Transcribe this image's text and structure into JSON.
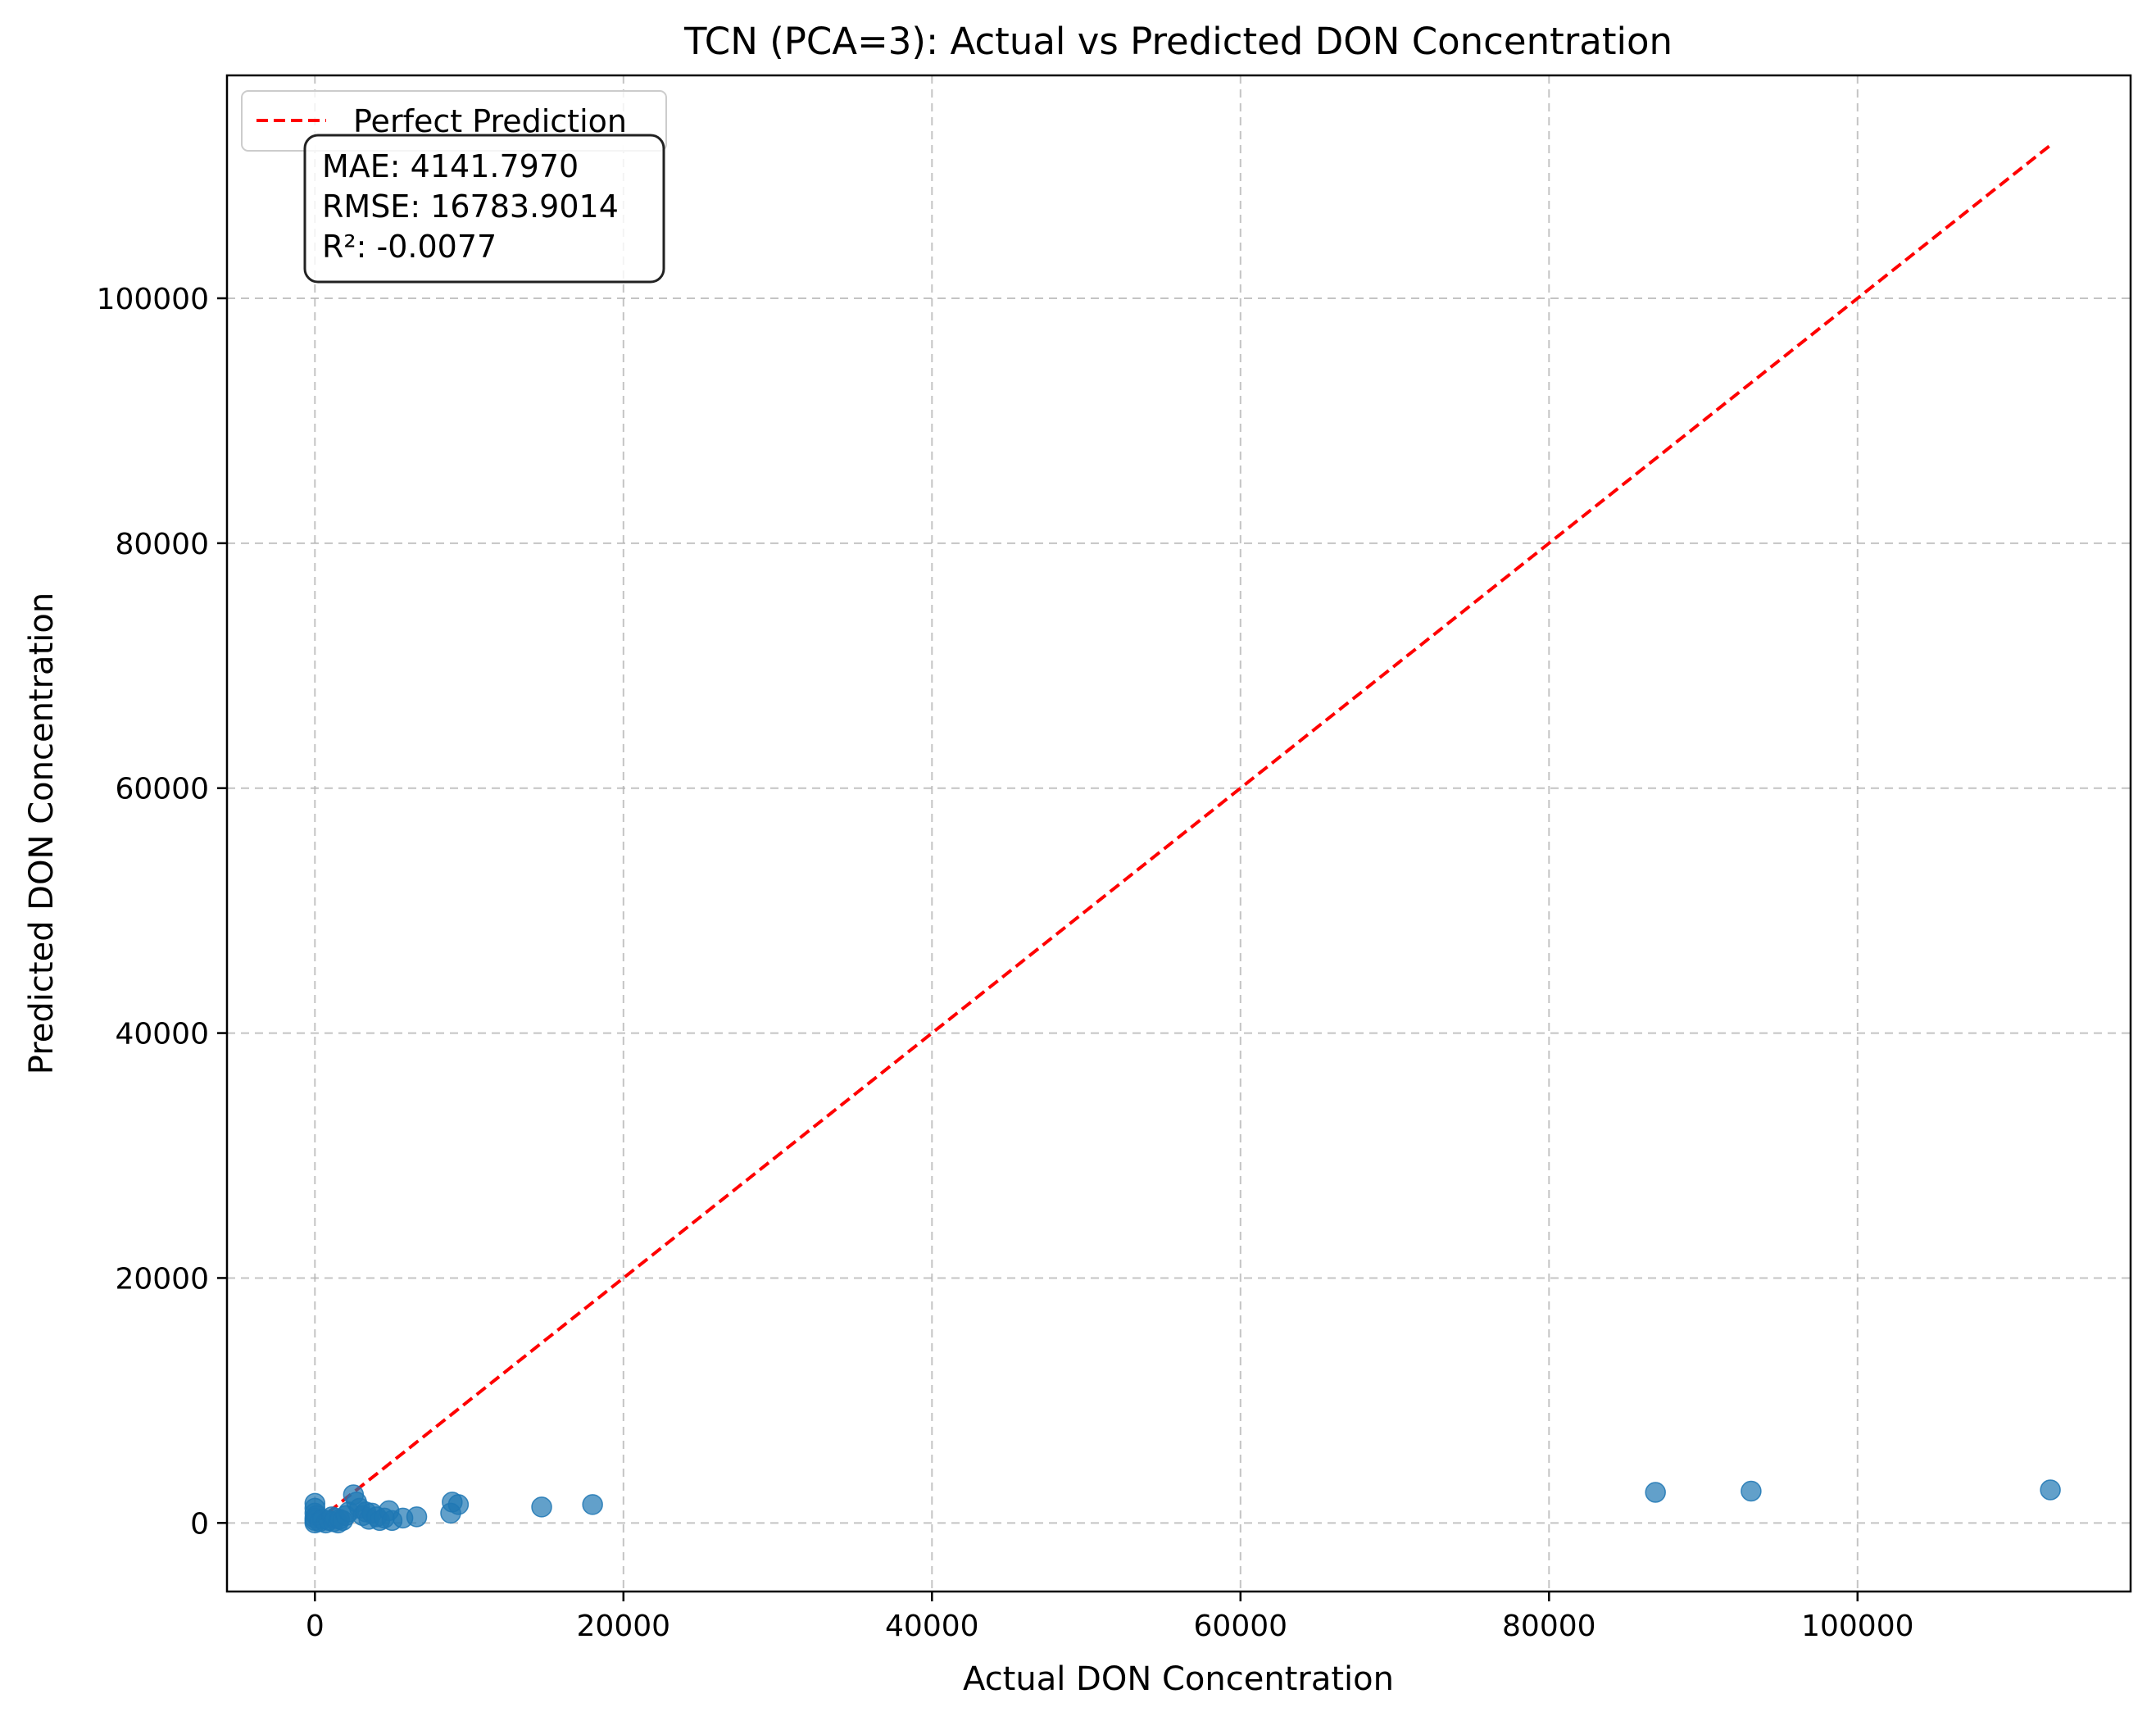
{
  "chart_data": {
    "type": "scatter",
    "title": "TCN (PCA=3): Actual vs Predicted DON Concentration",
    "xlabel": "Actual DON Concentration",
    "ylabel": "Predicted DON Concentration",
    "xlim": [
      -5700,
      117700
    ],
    "ylim": [
      -5600,
      118200
    ],
    "xticks": [
      0,
      20000,
      40000,
      60000,
      80000,
      100000
    ],
    "yticks": [
      0,
      20000,
      40000,
      60000,
      80000,
      100000
    ],
    "xtick_labels": [
      "0",
      "20000",
      "40000",
      "60000",
      "80000",
      "100000"
    ],
    "ytick_labels": [
      "0",
      "20000",
      "40000",
      "60000",
      "80000",
      "100000"
    ],
    "grid": true,
    "legend_position": "top-left",
    "legend": [
      {
        "label": "Perfect Prediction",
        "style": "dashed",
        "color": "#ff0000"
      }
    ],
    "stats_box": {
      "lines": [
        "MAE: 4141.7970",
        "RMSE: 16783.9014",
        "R²: -0.0077"
      ]
    },
    "reference_line": {
      "x": [
        0,
        112500
      ],
      "y": [
        0,
        112500
      ],
      "color": "#ff0000"
    },
    "point_color": "#1f77b4",
    "series": [
      {
        "points": [
          [
            0,
            1600
          ],
          [
            0,
            1200
          ],
          [
            0,
            800
          ],
          [
            0,
            400
          ],
          [
            0,
            0
          ],
          [
            0,
            200
          ],
          [
            100,
            600
          ],
          [
            300,
            100
          ],
          [
            500,
            300
          ],
          [
            700,
            0
          ],
          [
            900,
            200
          ],
          [
            1100,
            500
          ],
          [
            1200,
            100
          ],
          [
            1300,
            400
          ],
          [
            1500,
            0
          ],
          [
            1600,
            300
          ],
          [
            1800,
            200
          ],
          [
            2000,
            600
          ],
          [
            2200,
            900
          ],
          [
            2500,
            2300
          ],
          [
            2700,
            1700
          ],
          [
            2900,
            1200
          ],
          [
            3100,
            600
          ],
          [
            3300,
            900
          ],
          [
            3500,
            300
          ],
          [
            3700,
            800
          ],
          [
            4000,
            500
          ],
          [
            4200,
            200
          ],
          [
            4500,
            400
          ],
          [
            4800,
            1000
          ],
          [
            5000,
            200
          ],
          [
            5700,
            400
          ],
          [
            6600,
            500
          ],
          [
            8800,
            800
          ],
          [
            8900,
            1700
          ],
          [
            9300,
            1500
          ],
          [
            14700,
            1300
          ],
          [
            18000,
            1500
          ],
          [
            86900,
            2500
          ],
          [
            93100,
            2600
          ],
          [
            112500,
            2700
          ]
        ]
      }
    ]
  }
}
